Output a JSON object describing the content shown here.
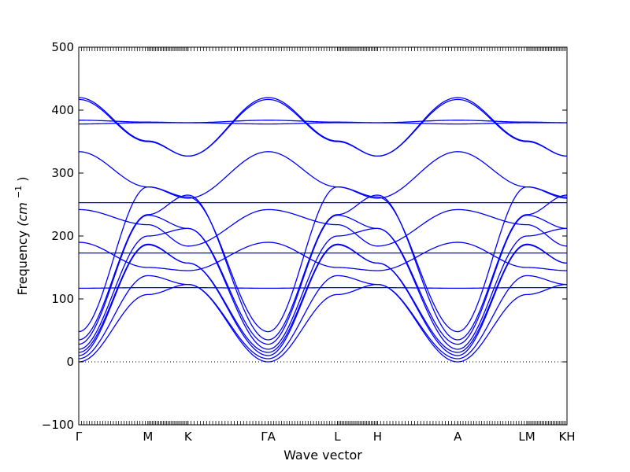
{
  "chart_data": {
    "type": "line",
    "xlabel": "Wave vector",
    "ylabel_text": "Frequency ",
    "ylabel_unit": "(cm",
    "ylabel_exp": "−1",
    "ylabel_close": ")",
    "ylim": [
      -100,
      500
    ],
    "yticks": [
      -100,
      0,
      100,
      200,
      300,
      400,
      500
    ],
    "ytick_labels": [
      "−100",
      "0",
      "100",
      "200",
      "300",
      "400",
      "500"
    ],
    "zero_line": true,
    "line_color": "#0000ff",
    "xticks": [
      {
        "label": "Γ",
        "x": 0.0
      },
      {
        "label": "M",
        "x": 0.5
      },
      {
        "label": "K",
        "x": 0.79
      },
      {
        "label": "ΓA",
        "x": 1.37
      },
      {
        "label": "L",
        "x": 1.87
      },
      {
        "label": "H",
        "x": 2.16
      },
      {
        "label": "A",
        "x": 2.74
      },
      {
        "label": "LM",
        "x": 3.24
      },
      {
        "label": "KH",
        "x": 3.53
      }
    ],
    "segments": [
      {
        "from": 0.0,
        "to": 0.5
      },
      {
        "from": 0.5,
        "to": 0.79
      },
      {
        "from": 0.79,
        "to": 1.37
      },
      {
        "from": 1.37,
        "to": 1.87
      },
      {
        "from": 1.87,
        "to": 2.16
      },
      {
        "from": 2.16,
        "to": 2.74
      },
      {
        "from": 2.74,
        "to": 3.24
      },
      {
        "from": 3.24,
        "to": 3.53
      }
    ],
    "series": [
      {
        "nodes": [
          0,
          107,
          123,
          0,
          107,
          123,
          0,
          107,
          123
        ]
      },
      {
        "nodes": [
          5,
          137,
          123,
          5,
          137,
          123,
          5,
          137,
          123
        ]
      },
      {
        "nodes": [
          10,
          186,
          157,
          10,
          186,
          157,
          10,
          186,
          157
        ]
      },
      {
        "nodes": [
          15,
          187,
          157,
          15,
          187,
          157,
          15,
          187,
          157
        ]
      },
      {
        "nodes": [
          20,
          200,
          212,
          20,
          200,
          212,
          20,
          200,
          212
        ]
      },
      {
        "nodes": [
          28,
          233,
          212,
          28,
          233,
          212,
          28,
          233,
          212
        ]
      },
      {
        "nodes": [
          35,
          234,
          265,
          35,
          234,
          265,
          35,
          234,
          265
        ]
      },
      {
        "nodes": [
          48,
          278,
          262,
          48,
          278,
          262,
          48,
          278,
          262
        ]
      },
      {
        "nodes": [
          117,
          118,
          118,
          117,
          118,
          118,
          117,
          118,
          118
        ]
      },
      {
        "nodes": [
          173,
          173,
          173,
          173,
          173,
          173,
          173,
          173,
          173
        ]
      },
      {
        "nodes": [
          190,
          150,
          145,
          190,
          150,
          145,
          190,
          150,
          145
        ]
      },
      {
        "nodes": [
          242,
          218,
          184,
          242,
          218,
          184,
          242,
          218,
          184
        ]
      },
      {
        "nodes": [
          253,
          253,
          253,
          253,
          253,
          253,
          253,
          253,
          253
        ]
      },
      {
        "nodes": [
          334,
          278,
          260,
          334,
          278,
          260,
          334,
          278,
          260
        ]
      },
      {
        "nodes": [
          378,
          380,
          380,
          378,
          380,
          380,
          378,
          380,
          380
        ]
      },
      {
        "nodes": [
          384,
          381,
          380,
          384,
          381,
          380,
          384,
          381,
          380
        ]
      },
      {
        "nodes": [
          417,
          350,
          327,
          417,
          350,
          327,
          417,
          350,
          327
        ]
      },
      {
        "nodes": [
          420,
          351,
          327,
          420,
          351,
          327,
          420,
          351,
          327
        ]
      }
    ]
  }
}
